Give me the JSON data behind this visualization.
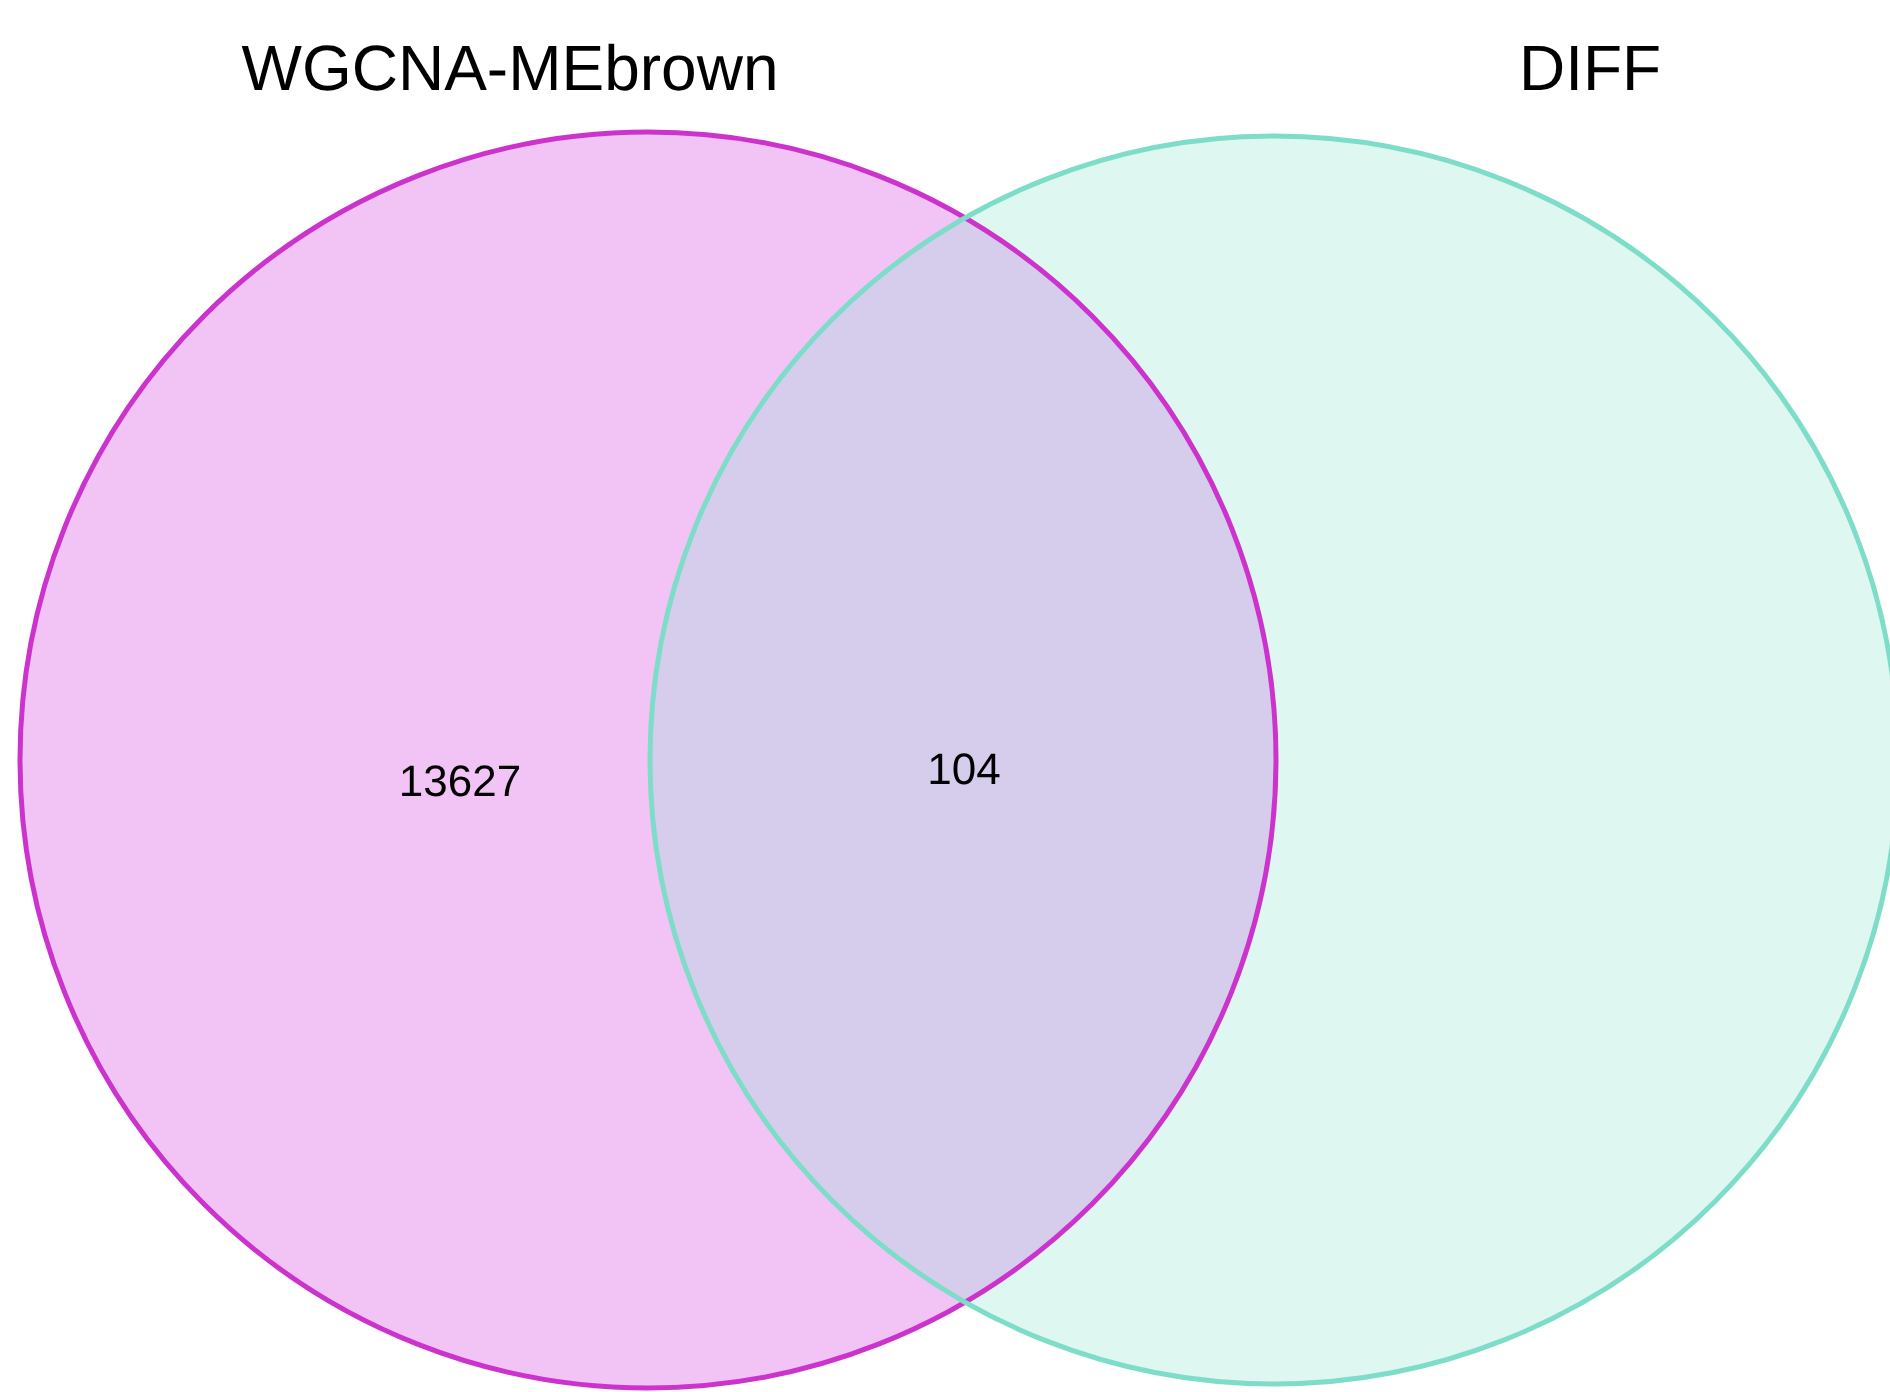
{
  "chart_data": {
    "type": "other",
    "data_labels": true,
    "categories": [
      null,
      null,
      null
    ],
    "values": [
      13627,
      104,
      null
    ],
    "colors": [
      "#f2c4f6",
      "#d6cdec",
      "#dff7f1"
    ],
    "annotations": [
      "WGCNA-MEbrown",
      "DIFF"
    ]
  }
}
